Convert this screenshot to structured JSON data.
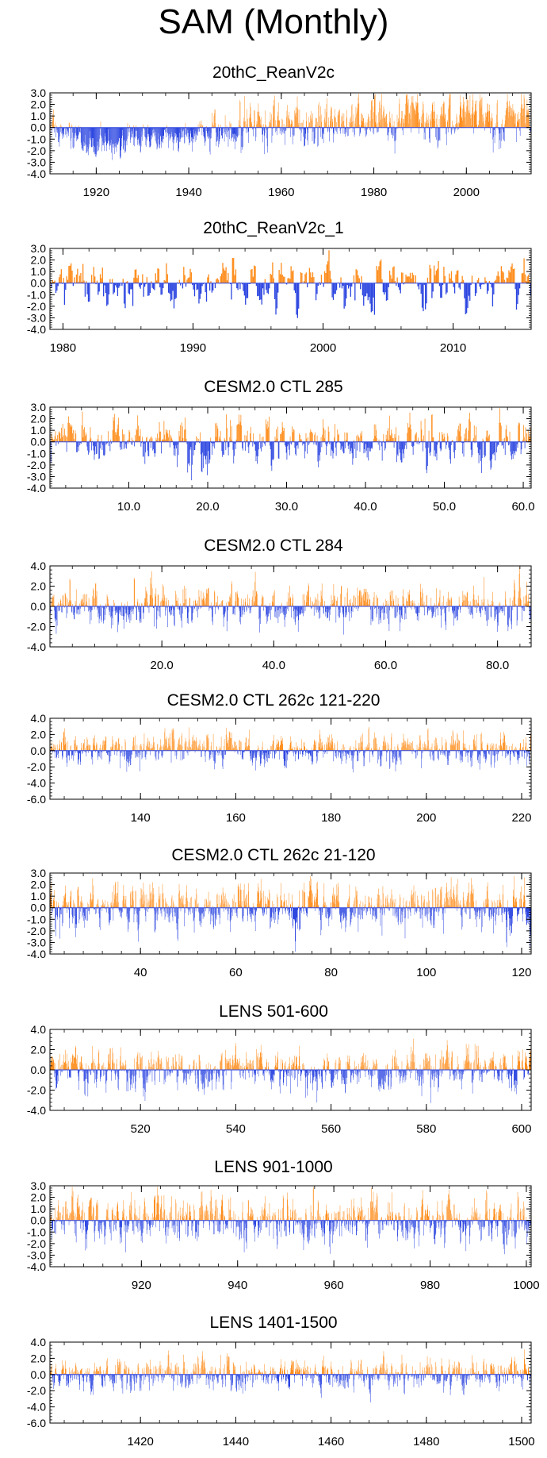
{
  "figure": {
    "title": "SAM (Monthly)"
  },
  "colors": {
    "positive": "#ff8c1a",
    "negative": "#2b45e0",
    "faint": "#c8c8c8",
    "axis": "#000000"
  },
  "chart_data": [
    {
      "type": "bar",
      "title": "20thC_ReanV2c",
      "x_range": [
        1910,
        2014
      ],
      "ylim": [
        -4.0,
        3.0
      ],
      "y_ticks": [
        3.0,
        2.0,
        1.0,
        0.0,
        -1.0,
        -2.0,
        -3.0,
        -4.0
      ],
      "y_tick_labels": [
        "3.0",
        "2.0",
        "1.0",
        "0.0",
        "-1.0",
        "-2.0",
        "-3.0",
        "-4.0"
      ],
      "x_ticks": [
        1920,
        1940,
        1960,
        1980,
        2000
      ],
      "x_tick_labels": [
        "1920",
        "1940",
        "1960",
        "1980",
        "2000"
      ],
      "x_minor_step": 5,
      "series": [
        {
          "x": [
            1910,
            1920,
            1930,
            1940,
            1946,
            1950,
            1960,
            1970,
            1980,
            1990,
            2000,
            2010,
            2014
          ],
          "mean": [
            -0.3,
            -1.4,
            -0.9,
            -0.7,
            -0.3,
            0.0,
            0.2,
            0.4,
            0.6,
            0.8,
            1.0,
            1.0,
            1.0
          ],
          "amplitude": [
            0.7,
            0.6,
            0.6,
            0.6,
            0.8,
            1.0,
            1.0,
            1.0,
            1.0,
            1.0,
            0.9,
            0.9,
            0.9
          ]
        }
      ]
    },
    {
      "type": "bar",
      "title": "20thC_ReanV2c_1",
      "x_range": [
        1979,
        2016
      ],
      "ylim": [
        -4.0,
        3.0
      ],
      "y_ticks": [
        3.0,
        2.0,
        1.0,
        0.0,
        -1.0,
        -2.0,
        -3.0,
        -4.0
      ],
      "y_tick_labels": [
        "3.0",
        "2.0",
        "1.0",
        "0.0",
        "-1.0",
        "-2.0",
        "-3.0",
        "-4.0"
      ],
      "x_ticks": [
        1980,
        1990,
        2000,
        2010
      ],
      "x_tick_labels": [
        "1980",
        "1990",
        "2000",
        "2010"
      ],
      "x_minor_step": 2,
      "series": [
        {
          "x": [
            1979,
            2016
          ],
          "mean": [
            0.0,
            0.0
          ],
          "amplitude": [
            1.0,
            1.0
          ]
        }
      ]
    },
    {
      "type": "bar",
      "title": "CESM2.0 CTL 285",
      "x_range": [
        0,
        61
      ],
      "ylim": [
        -4.0,
        3.0
      ],
      "y_ticks": [
        3.0,
        2.0,
        1.0,
        0.0,
        -1.0,
        -2.0,
        -3.0,
        -4.0
      ],
      "y_tick_labels": [
        "3.0",
        "2.0",
        "1.0",
        "0.0",
        "-1.0",
        "-2.0",
        "-3.0",
        "-4.0"
      ],
      "x_ticks": [
        10,
        20,
        30,
        40,
        50,
        60
      ],
      "x_tick_labels": [
        "10.0",
        "20.0",
        "30.0",
        "40.0",
        "50.0",
        "60.0"
      ],
      "x_minor_step": 2,
      "series": [
        {
          "x": [
            0,
            61
          ],
          "mean": [
            0.0,
            0.0
          ],
          "amplitude": [
            1.0,
            1.0
          ]
        }
      ]
    },
    {
      "type": "bar",
      "title": "CESM2.0 CTL 284",
      "x_range": [
        0,
        86
      ],
      "ylim": [
        -4.0,
        4.0
      ],
      "y_ticks": [
        4.0,
        2.0,
        0.0,
        -2.0,
        -4.0
      ],
      "y_tick_labels": [
        "4.0",
        "2.0",
        "0.0",
        "-2.0",
        "-4.0"
      ],
      "x_ticks": [
        20,
        40,
        60,
        80
      ],
      "x_tick_labels": [
        "20.0",
        "40.0",
        "60.0",
        "80.0"
      ],
      "x_minor_step": 4,
      "series": [
        {
          "x": [
            0,
            86
          ],
          "mean": [
            0.0,
            0.0
          ],
          "amplitude": [
            1.0,
            1.0
          ]
        }
      ]
    },
    {
      "type": "bar",
      "title": "CESM2.0 CTL 262c 121-220",
      "x_range": [
        121,
        222
      ],
      "ylim": [
        -6.0,
        4.0
      ],
      "y_ticks": [
        4.0,
        2.0,
        0.0,
        -2.0,
        -4.0,
        -6.0
      ],
      "y_tick_labels": [
        "4.0",
        "2.0",
        "0.0",
        "-2.0",
        "-4.0",
        "-6.0"
      ],
      "x_ticks": [
        140,
        160,
        180,
        200,
        220
      ],
      "x_tick_labels": [
        "140",
        "160",
        "180",
        "200",
        "220"
      ],
      "x_minor_step": 4,
      "series": [
        {
          "x": [
            121,
            222
          ],
          "mean": [
            0.0,
            0.0
          ],
          "amplitude": [
            1.0,
            1.0
          ]
        }
      ]
    },
    {
      "type": "bar",
      "title": "CESM2.0 CTL 262c 21-120",
      "x_range": [
        21,
        122
      ],
      "ylim": [
        -4.0,
        3.0
      ],
      "y_ticks": [
        3.0,
        2.0,
        1.0,
        0.0,
        -1.0,
        -2.0,
        -3.0,
        -4.0
      ],
      "y_tick_labels": [
        "3.0",
        "2.0",
        "1.0",
        "0.0",
        "-1.0",
        "-2.0",
        "-3.0",
        "-4.0"
      ],
      "x_ticks": [
        40,
        60,
        80,
        100,
        120
      ],
      "x_tick_labels": [
        "40",
        "60",
        "80",
        "100",
        "120"
      ],
      "x_minor_step": 4,
      "series": [
        {
          "x": [
            21,
            122
          ],
          "mean": [
            0.0,
            0.0
          ],
          "amplitude": [
            1.0,
            1.0
          ]
        }
      ]
    },
    {
      "type": "bar",
      "title": "LENS 501-600",
      "x_range": [
        501,
        602
      ],
      "ylim": [
        -4.0,
        4.0
      ],
      "y_ticks": [
        4.0,
        2.0,
        0.0,
        -2.0,
        -4.0
      ],
      "y_tick_labels": [
        "4.0",
        "2.0",
        "0.0",
        "-2.0",
        "-4.0"
      ],
      "x_ticks": [
        520,
        540,
        560,
        580,
        600
      ],
      "x_tick_labels": [
        "520",
        "540",
        "560",
        "580",
        "600"
      ],
      "x_minor_step": 4,
      "series": [
        {
          "x": [
            501,
            602
          ],
          "mean": [
            0.0,
            0.0
          ],
          "amplitude": [
            1.0,
            1.0
          ]
        }
      ]
    },
    {
      "type": "bar",
      "title": "LENS 901-1000",
      "x_range": [
        901,
        1001
      ],
      "ylim": [
        -4.0,
        3.0
      ],
      "y_ticks": [
        3.0,
        2.0,
        1.0,
        0.0,
        -1.0,
        -2.0,
        -3.0,
        -4.0
      ],
      "y_tick_labels": [
        "3.0",
        "2.0",
        "1.0",
        "0.0",
        "-1.0",
        "-2.0",
        "-3.0",
        "-4.0"
      ],
      "x_ticks": [
        920,
        940,
        960,
        980,
        1000
      ],
      "x_tick_labels": [
        "920",
        "940",
        "960",
        "980",
        "1000"
      ],
      "x_minor_step": 4,
      "series": [
        {
          "x": [
            901,
            1001
          ],
          "mean": [
            0.0,
            0.0
          ],
          "amplitude": [
            1.0,
            1.0
          ]
        }
      ]
    },
    {
      "type": "bar",
      "title": "LENS 1401-1500",
      "x_range": [
        1401,
        1502
      ],
      "ylim": [
        -6.0,
        4.0
      ],
      "y_ticks": [
        4.0,
        2.0,
        0.0,
        -2.0,
        -4.0,
        -6.0
      ],
      "y_tick_labels": [
        "4.0",
        "2.0",
        "0.0",
        "-2.0",
        "-4.0",
        "-6.0"
      ],
      "x_ticks": [
        1420,
        1440,
        1460,
        1480,
        1500
      ],
      "x_tick_labels": [
        "1420",
        "1440",
        "1460",
        "1480",
        "1500"
      ],
      "x_minor_step": 4,
      "series": [
        {
          "x": [
            1401,
            1502
          ],
          "mean": [
            0.0,
            0.0
          ],
          "amplitude": [
            1.0,
            1.0
          ]
        }
      ]
    }
  ]
}
